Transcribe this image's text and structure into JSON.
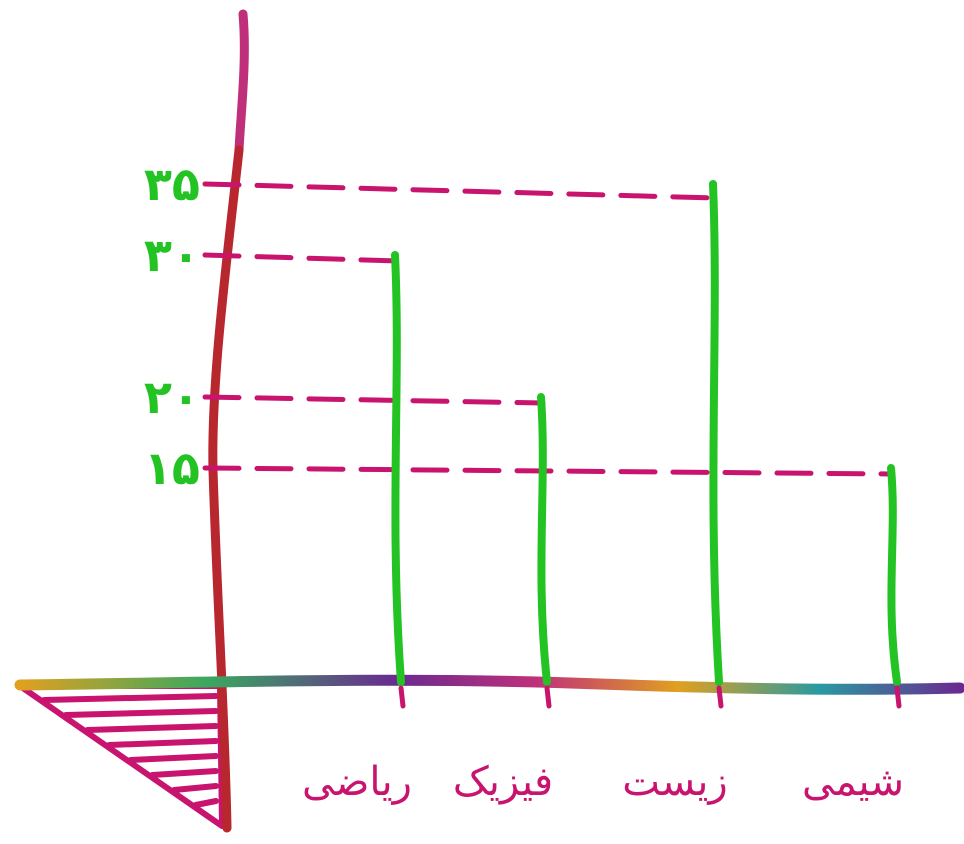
{
  "chart_data": {
    "type": "bar",
    "categories": [
      "ریاضی",
      "فیزیک",
      "زیست",
      "شیمی"
    ],
    "values": [
      30,
      20,
      35,
      15
    ],
    "y_ticks": [
      15,
      20,
      30,
      35
    ],
    "y_tick_labels": [
      "۱۵",
      "۲۰",
      "۳۰",
      "۳۵"
    ],
    "ylim": [
      0,
      40
    ],
    "grid": false,
    "legend": "none",
    "colors": {
      "bars": "#22c322",
      "guides": "#c8146e",
      "labels": "#c8146e",
      "tick_labels": "#22c322",
      "y_axis": "#b8262e",
      "y_axis_top": "#c0307a",
      "x_axis_start": "#e0a020",
      "x_axis_end": "#6a2a90",
      "corner_hatch": "#c8146e"
    }
  }
}
